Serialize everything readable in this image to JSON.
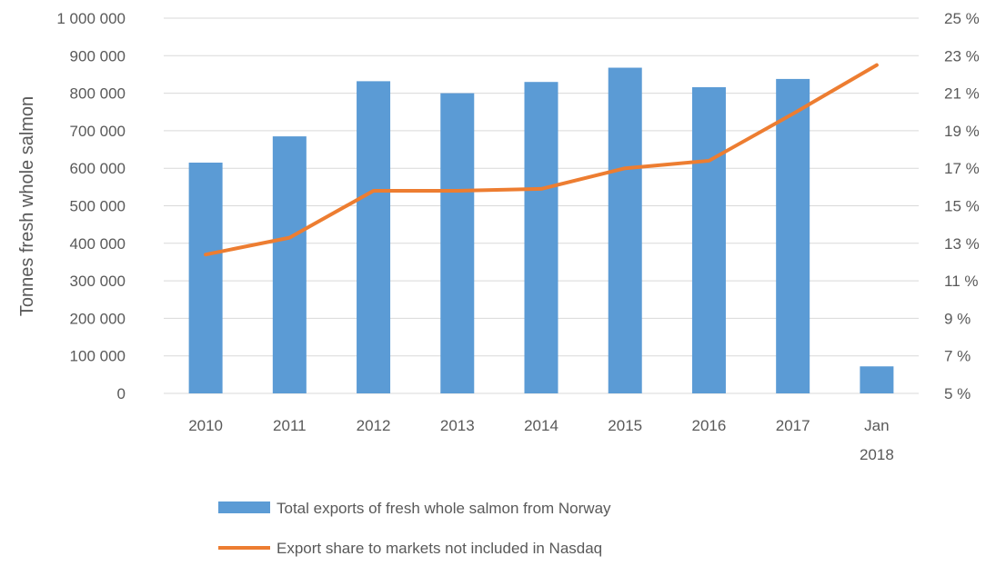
{
  "chart_data": {
    "type": "bar",
    "categories": [
      "2010",
      "2011",
      "2012",
      "2013",
      "2014",
      "2015",
      "2016",
      "2017",
      "Jan 2018"
    ],
    "category_lines": [
      [
        "2010"
      ],
      [
        "2011"
      ],
      [
        "2012"
      ],
      [
        "2013"
      ],
      [
        "2014"
      ],
      [
        "2015"
      ],
      [
        "2016"
      ],
      [
        "2017"
      ],
      [
        "Jan",
        "2018"
      ]
    ],
    "series": [
      {
        "name": "Total exports of fresh whole salmon from Norway",
        "type": "bar",
        "axis": "left",
        "color": "#5b9bd5",
        "values": [
          615000,
          685000,
          832000,
          800000,
          830000,
          868000,
          816000,
          838000,
          72000
        ]
      },
      {
        "name": "Export share to markets not included in Nasdaq",
        "type": "line",
        "axis": "right",
        "color": "#ed7d31",
        "values": [
          12.4,
          13.3,
          15.8,
          15.8,
          15.9,
          17.0,
          17.4,
          19.9,
          22.5
        ]
      }
    ],
    "ylabel": "Tonnes fresh whole salmon",
    "ylim": [
      0,
      1000000
    ],
    "y_ticks": [
      "0",
      "100 000",
      "200 000",
      "300 000",
      "400 000",
      "500 000",
      "600 000",
      "700 000",
      "800 000",
      "900 000",
      "1 000 000"
    ],
    "y2lim": [
      5,
      25
    ],
    "y2_ticks": [
      "5 %",
      "7 %",
      "9 %",
      "11 %",
      "13 %",
      "15 %",
      "17 %",
      "19 %",
      "21 %",
      "23 %",
      "25 %"
    ],
    "grid": true,
    "legend_position": "bottom"
  }
}
